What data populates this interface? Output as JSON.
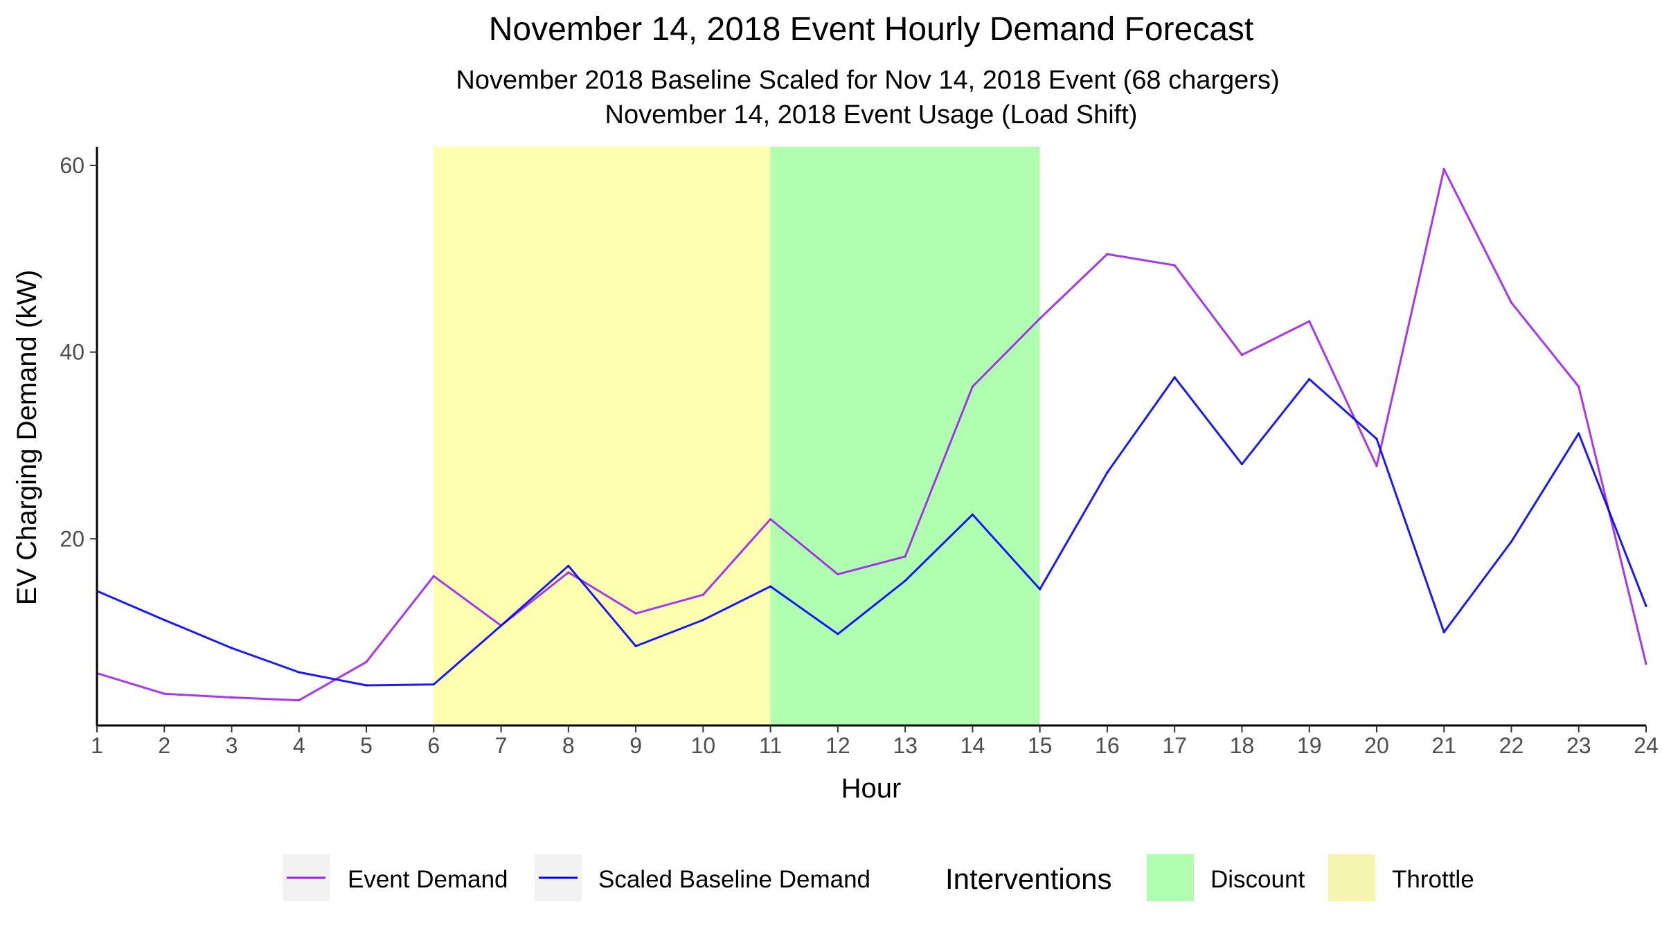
{
  "chart_data": {
    "type": "line",
    "title": "November 14, 2018 Event Hourly Demand Forecast",
    "subtitle_lines": [
      "November 2018 Baseline Scaled for Nov 14, 2018 Event (68 chargers)",
      "November 14, 2018 Event Usage (Load Shift)"
    ],
    "xlabel": "Hour",
    "ylabel": "EV Charging Demand (kW)",
    "x": [
      1,
      2,
      3,
      4,
      5,
      6,
      7,
      8,
      9,
      10,
      11,
      12,
      13,
      14,
      15,
      16,
      17,
      18,
      19,
      20,
      21,
      22,
      23,
      24
    ],
    "x_ticks": [
      "1",
      "2",
      "3",
      "4",
      "5",
      "6",
      "7",
      "8",
      "9",
      "10",
      "11",
      "12",
      "13",
      "14",
      "15",
      "16",
      "17",
      "18",
      "19",
      "20",
      "21",
      "22",
      "23",
      "24"
    ],
    "y_ticks": [
      20,
      40,
      60
    ],
    "xlim": [
      1,
      24
    ],
    "ylim": [
      0,
      62
    ],
    "grid": false,
    "legend_position": "bottom",
    "series": [
      {
        "name": "Event Demand",
        "color": "#A020F0",
        "values": [
          5.6,
          3.4,
          3.0,
          2.7,
          6.8,
          16.0,
          10.7,
          16.4,
          12.0,
          14.0,
          22.1,
          16.2,
          18.1,
          36.3,
          43.6,
          50.5,
          49.3,
          39.7,
          43.3,
          27.8,
          59.6,
          45.3,
          36.3,
          6.6
        ]
      },
      {
        "name": "Scaled Baseline Demand",
        "color": "#0000FF",
        "values": [
          14.4,
          11.3,
          8.3,
          5.7,
          4.3,
          4.4,
          10.7,
          17.1,
          8.5,
          11.3,
          14.9,
          9.8,
          15.5,
          22.6,
          14.6,
          27.1,
          37.3,
          28.0,
          37.1,
          30.7,
          10.0,
          19.7,
          31.3,
          12.8
        ]
      }
    ],
    "shaded_regions": [
      {
        "label": "Throttle",
        "x_start": 6,
        "x_end": 11,
        "color": "#FFFFB0"
      },
      {
        "label": "Discount",
        "x_start": 11,
        "x_end": 15,
        "color": "#B0FFB0"
      }
    ],
    "legend": {
      "series_items": [
        "Event Demand",
        "Scaled Baseline Demand"
      ],
      "interventions_title": "Interventions",
      "intervention_items": [
        {
          "label": "Discount",
          "color": "#B0FFB0"
        },
        {
          "label": "Throttle",
          "color": "#F5F5B0"
        }
      ]
    }
  }
}
